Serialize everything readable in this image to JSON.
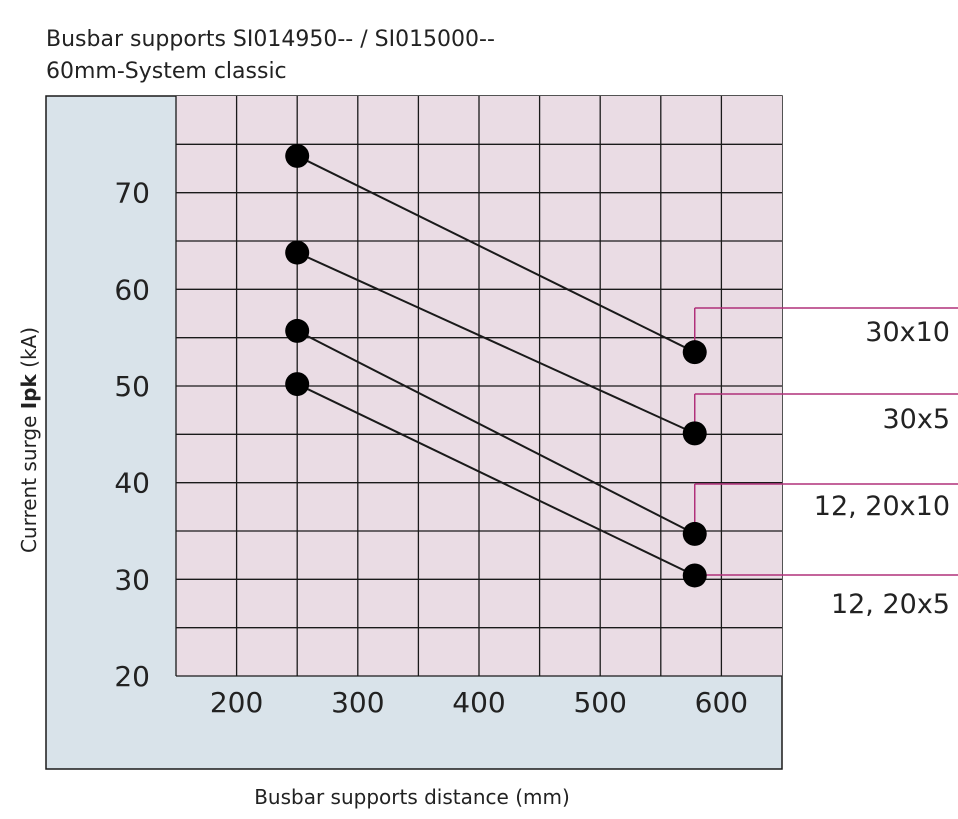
{
  "chart_data": {
    "type": "line",
    "title": "Busbar supports SI014950-- / SI015000--",
    "subtitle": "60mm-System classic",
    "xlabel": "Busbar supports distance (mm)",
    "ylabel_prefix": "Current surge ",
    "ylabel_bold": "Ipk",
    "ylabel_suffix": " (kA)",
    "xlim": [
      150,
      650
    ],
    "ylim": [
      20,
      80
    ],
    "x_ticks": [
      200,
      300,
      400,
      500,
      600
    ],
    "y_ticks": [
      20,
      30,
      40,
      50,
      60,
      70
    ],
    "grid": true,
    "colors": {
      "panel": "#d9e3ea",
      "plot": "#eadce4",
      "grid": "#1a1a1a",
      "line": "#1a1a1a",
      "marker": "#000000",
      "callout": "#b0307a"
    },
    "series": [
      {
        "name": "30x10",
        "x": [
          250,
          578
        ],
        "y": [
          73.8,
          53.5
        ]
      },
      {
        "name": "30x5",
        "x": [
          250,
          578
        ],
        "y": [
          63.8,
          45.1
        ]
      },
      {
        "name": "12, 20x10",
        "x": [
          250,
          578
        ],
        "y": [
          55.7,
          34.7
        ]
      },
      {
        "name": "12, 20x5",
        "x": [
          250,
          578
        ],
        "y": [
          50.2,
          30.4
        ]
      }
    ]
  }
}
